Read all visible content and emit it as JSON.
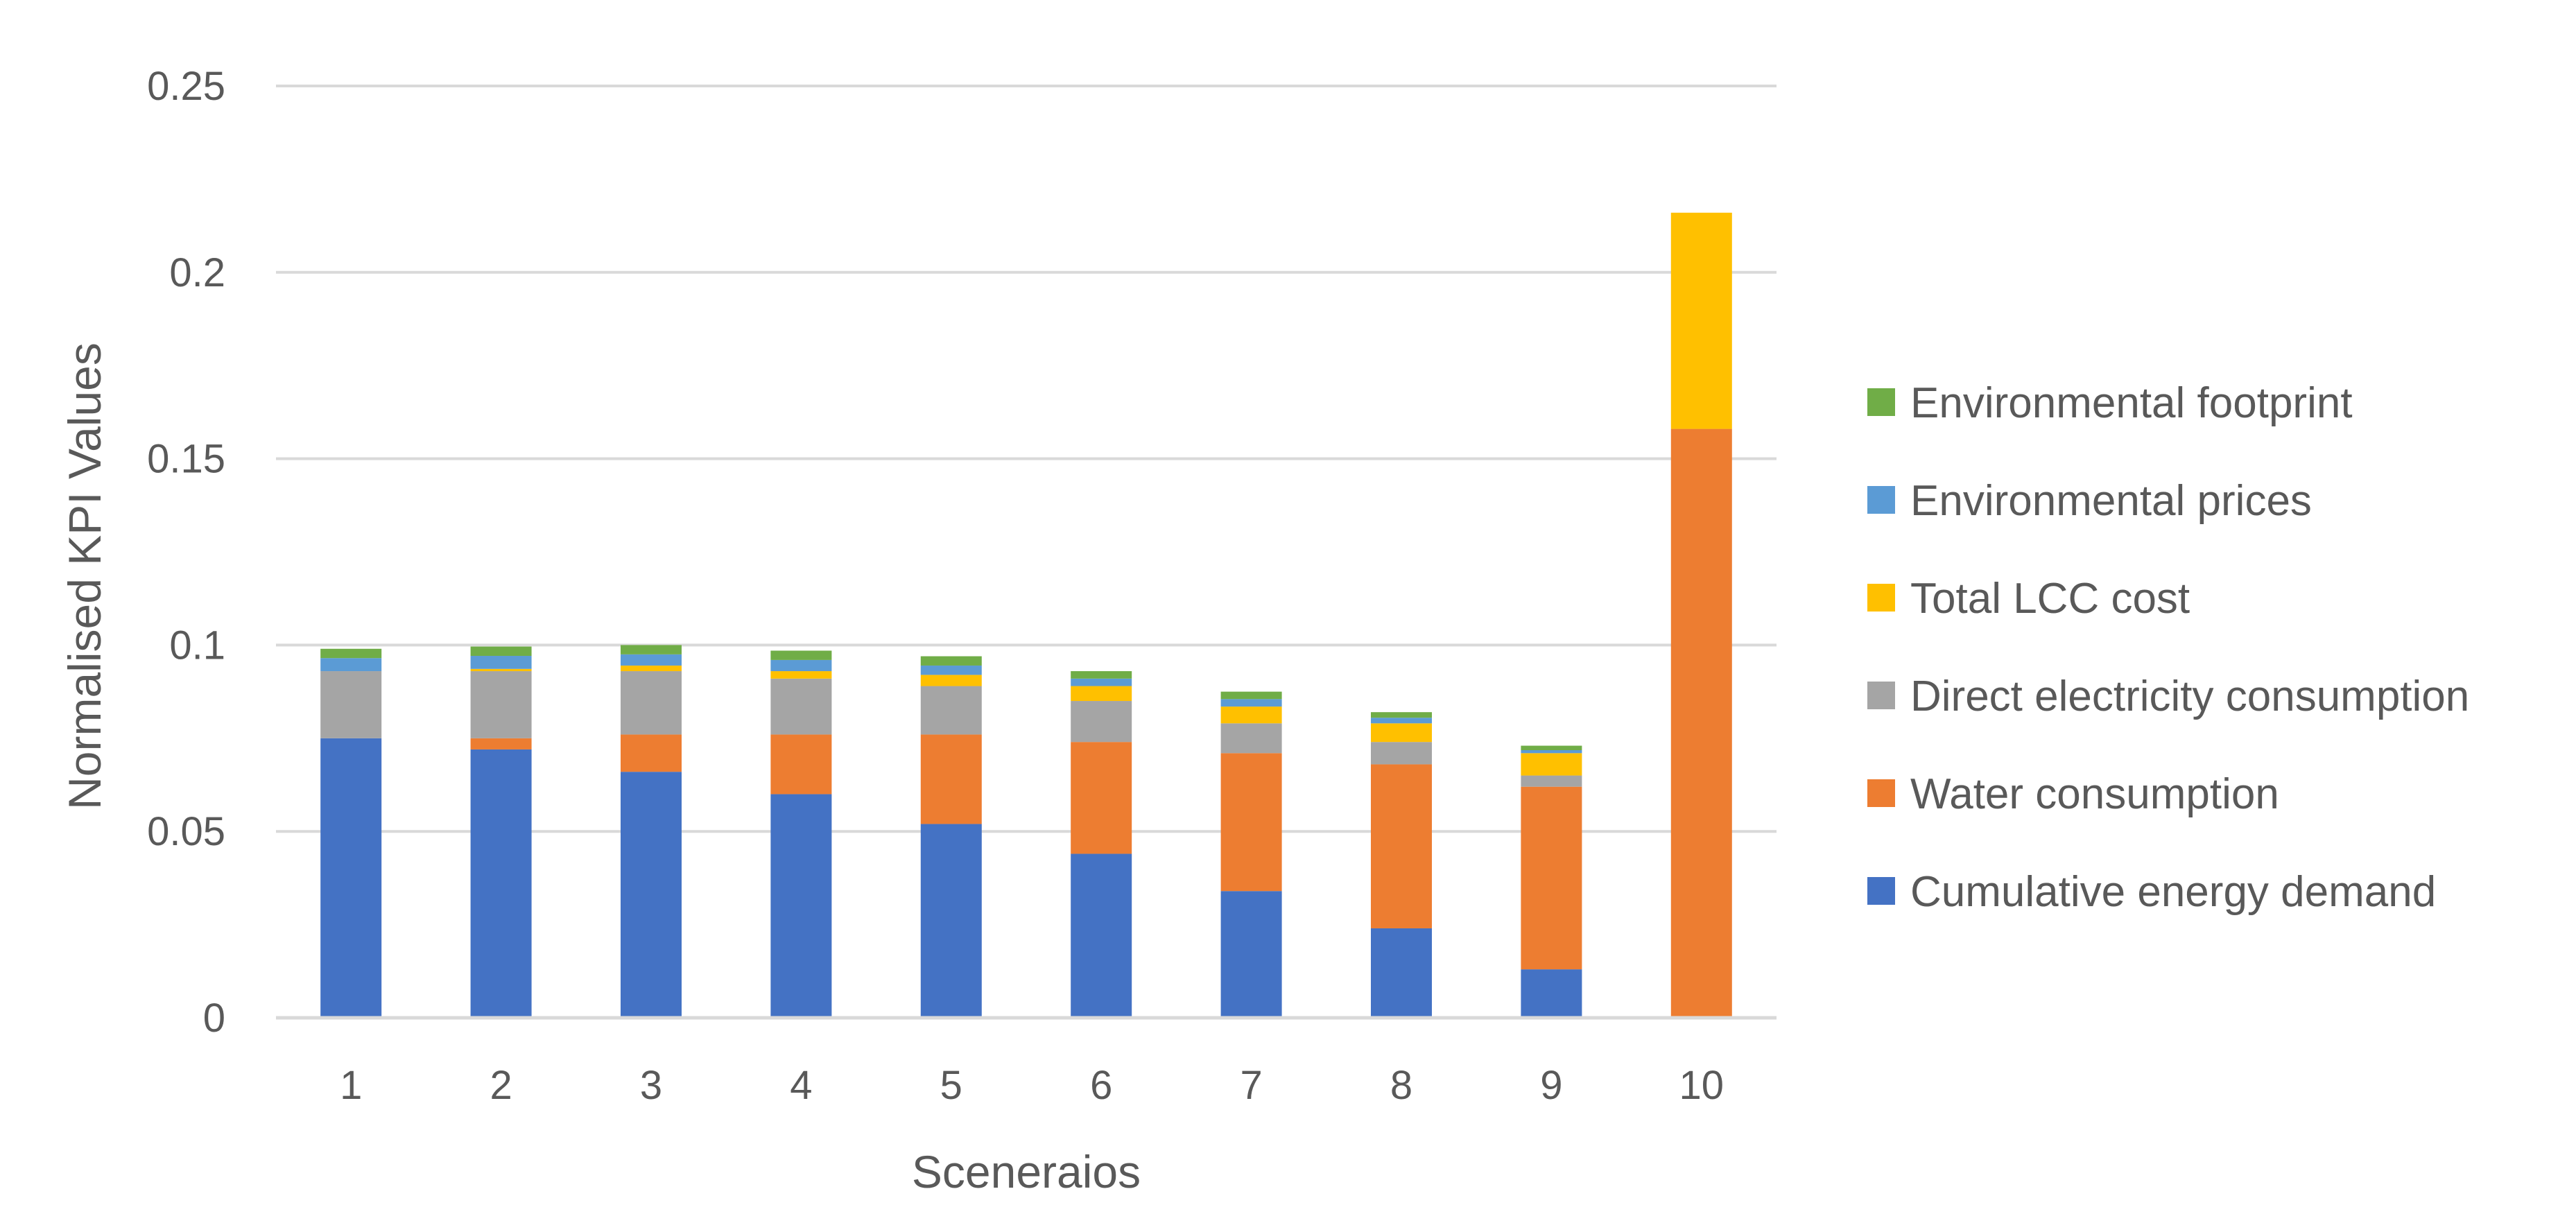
{
  "chart_data": {
    "type": "bar",
    "stacked": true,
    "title": "",
    "xlabel": "Sceneraios",
    "ylabel": "Normalised KPI Values",
    "ylim": [
      0,
      0.25
    ],
    "yticks": [
      0,
      0.05,
      0.1,
      0.15,
      0.2,
      0.25
    ],
    "ytick_labels": [
      "0",
      "0.05",
      "0.1",
      "0.15",
      "0.2",
      "0.25"
    ],
    "grid": true,
    "legend_position": "right",
    "categories": [
      "1",
      "2",
      "3",
      "4",
      "5",
      "6",
      "7",
      "8",
      "9",
      "10"
    ],
    "series": [
      {
        "name": "Cumulative energy demand",
        "color": "#4472C4",
        "values": [
          0.075,
          0.072,
          0.066,
          0.06,
          0.052,
          0.044,
          0.034,
          0.024,
          0.013,
          0.0
        ]
      },
      {
        "name": "Water consumption",
        "color": "#ED7D31",
        "values": [
          0.0,
          0.003,
          0.01,
          0.016,
          0.024,
          0.03,
          0.037,
          0.044,
          0.049,
          0.158
        ]
      },
      {
        "name": "Direct electricity consumption",
        "color": "#A5A5A5",
        "values": [
          0.018,
          0.018,
          0.017,
          0.015,
          0.013,
          0.011,
          0.008,
          0.006,
          0.003,
          0.0
        ]
      },
      {
        "name": "Total LCC cost",
        "color": "#FFC000",
        "values": [
          0.0,
          0.0006,
          0.0015,
          0.002,
          0.003,
          0.004,
          0.0045,
          0.005,
          0.006,
          0.058
        ]
      },
      {
        "name": "Environmental prices",
        "color": "#5B9BD5",
        "values": [
          0.0035,
          0.0035,
          0.003,
          0.003,
          0.0025,
          0.002,
          0.002,
          0.0015,
          0.0008,
          0.0
        ]
      },
      {
        "name": "Environmental footprint",
        "color": "#70AD47",
        "values": [
          0.0025,
          0.0025,
          0.0025,
          0.0025,
          0.0025,
          0.002,
          0.002,
          0.0015,
          0.0012,
          0.0
        ]
      }
    ],
    "legend_order": [
      "Environmental footprint",
      "Environmental prices",
      "Total LCC cost",
      "Direct electricity consumption",
      "Water consumption",
      "Cumulative energy demand"
    ]
  },
  "colors": {
    "gridline": "#D9D9D9",
    "axis": "#D9D9D9",
    "text": "#595959"
  }
}
